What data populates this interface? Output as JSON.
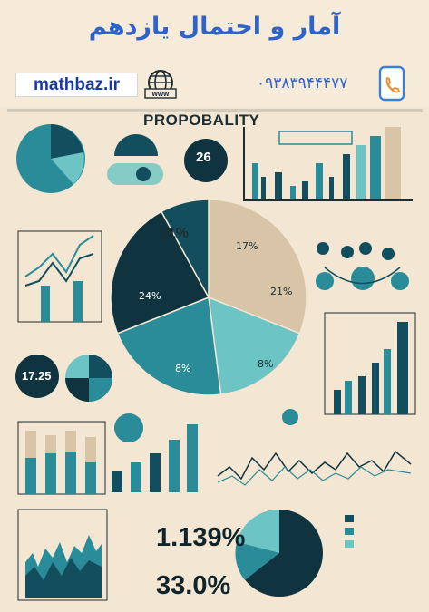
{
  "header": {
    "title": "آمار و احتمال یازدهم",
    "site": "mathbaz.ir",
    "phone": "۰۹۳۸۳۹۴۴۴۷۷",
    "globe_icon": "www-globe-icon",
    "phone_icon": "phone-icon"
  },
  "poster": {
    "heading": "PROPOBALITY",
    "circle_number": "26",
    "small_circle_number": "17.25",
    "big_number_1": "1.139%",
    "big_number_2": "33.0%",
    "colors": {
      "teal_dark": "#134e5e",
      "teal": "#2a8c99",
      "teal_light": "#6cc4c4",
      "navy": "#0f3440",
      "tan": "#d8c4a6",
      "background": "#f3e6d2"
    }
  },
  "chart_data": {
    "type": "pie",
    "values": [
      31,
      17,
      21,
      23,
      8
    ],
    "series_colors": [
      "#d8c4a6",
      "#6cc4c4",
      "#2a8c99",
      "#0f3440",
      "#134e5e"
    ]
  }
}
